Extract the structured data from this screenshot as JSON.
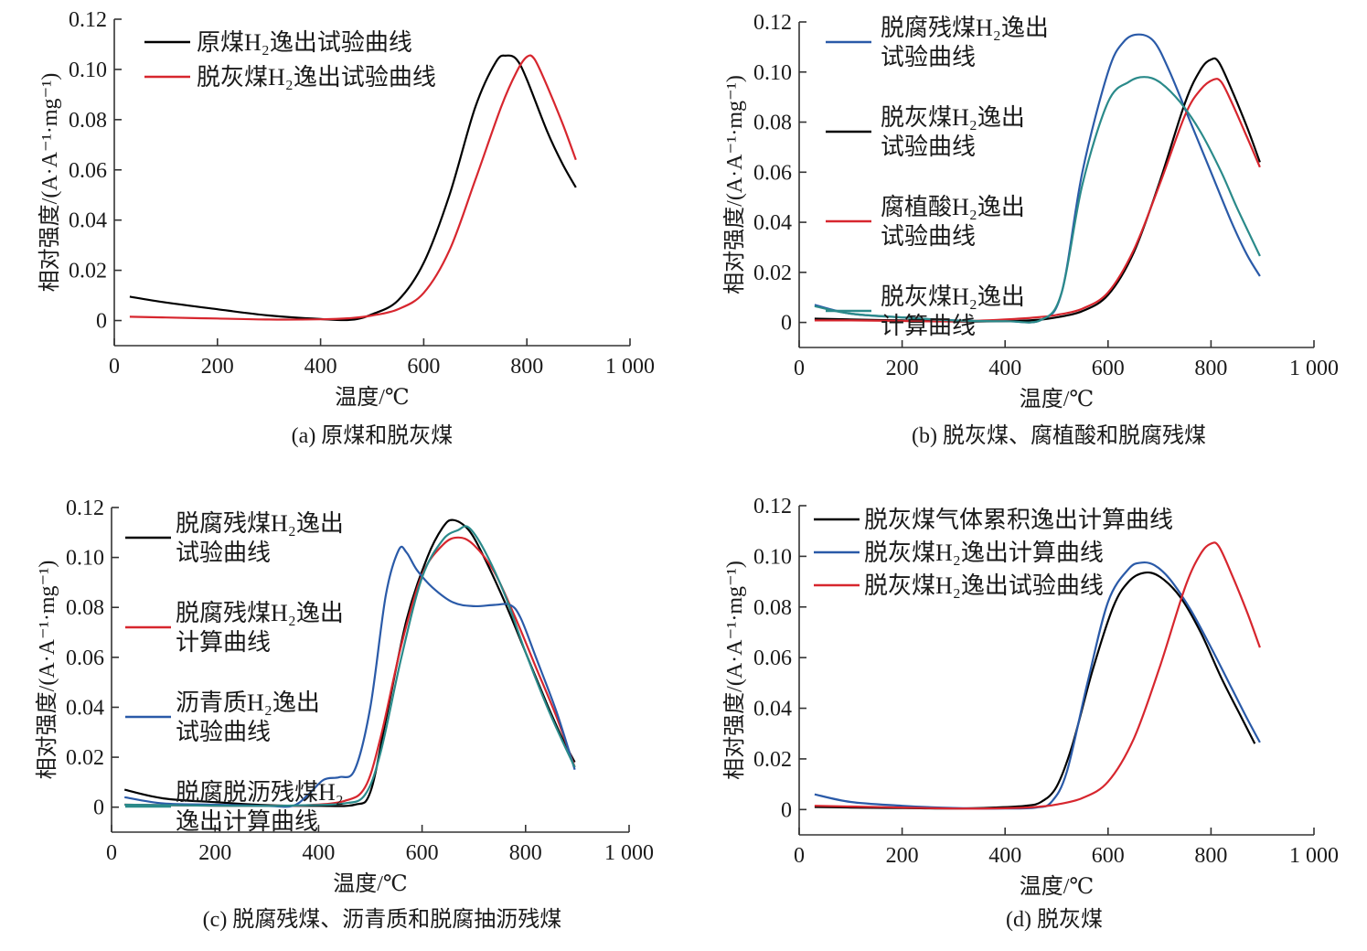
{
  "figure": {
    "panels_count": 4
  },
  "chart_data": [
    {
      "id": "a",
      "type": "line",
      "caption": "(a) 原煤和脱灰煤",
      "xlabel": "温度/℃",
      "ylabel": "相对强度/(A·A⁻¹·mg⁻¹)",
      "xlim": [
        0,
        1000
      ],
      "ylim": [
        -0.01,
        0.12
      ],
      "xticks": [
        0,
        200,
        400,
        600,
        800,
        1000
      ],
      "xtick_labels": [
        "0",
        "200",
        "400",
        "600",
        "800",
        "1 000"
      ],
      "yticks": [
        0,
        0.02,
        0.04,
        0.06,
        0.08,
        0.1,
        0.12
      ],
      "ytick_labels": [
        "0",
        "0.02",
        "0.04",
        "0.06",
        "0.08",
        "0.10",
        "0.12"
      ],
      "legend_position": "top-left",
      "series": [
        {
          "name": "原煤H₂逸出试验曲线",
          "legend_lines": [
            "原煤H₂逸出试验曲线"
          ],
          "color": "#000000",
          "x": [
            30,
            100,
            200,
            300,
            400,
            460,
            500,
            550,
            600,
            650,
            700,
            740,
            760,
            780,
            800,
            840,
            870,
            895
          ],
          "y": [
            0.0095,
            0.0072,
            0.0045,
            0.002,
            0.0006,
            0.0003,
            0.0025,
            0.008,
            0.023,
            0.05,
            0.085,
            0.103,
            0.1055,
            0.104,
            0.096,
            0.075,
            0.062,
            0.053
          ]
        },
        {
          "name": "脱灰煤H₂逸出试验曲线",
          "legend_lines": [
            "脱灰煤H₂逸出试验曲线"
          ],
          "color": "#d7262e",
          "x": [
            30,
            100,
            200,
            300,
            400,
            460,
            500,
            550,
            600,
            650,
            700,
            750,
            780,
            800,
            815,
            840,
            870,
            895
          ],
          "y": [
            0.0015,
            0.0012,
            0.0008,
            0.0004,
            0.0005,
            0.001,
            0.002,
            0.0045,
            0.011,
            0.028,
            0.056,
            0.085,
            0.099,
            0.105,
            0.104,
            0.093,
            0.078,
            0.064
          ]
        }
      ]
    },
    {
      "id": "b",
      "type": "line",
      "caption": "(b) 脱灰煤、腐植酸和脱腐残煤",
      "xlabel": "温度/℃",
      "ylabel": "相对强度/(A·A⁻¹·mg⁻¹)",
      "xlim": [
        0,
        1000
      ],
      "ylim": [
        -0.01,
        0.12
      ],
      "xticks": [
        0,
        200,
        400,
        600,
        800,
        1000
      ],
      "xtick_labels": [
        "0",
        "200",
        "400",
        "600",
        "800",
        "1 000"
      ],
      "yticks": [
        0,
        0.02,
        0.04,
        0.06,
        0.08,
        0.1,
        0.12
      ],
      "ytick_labels": [
        "0",
        "0.02",
        "0.04",
        "0.06",
        "0.08",
        "0.10",
        "0.12"
      ],
      "legend_position": "top-left",
      "series": [
        {
          "name": "脱腐残煤H₂逸出试验曲线",
          "legend_lines": [
            "脱腐残煤H₂逸出",
            "试验曲线"
          ],
          "color": "#2a5aa8",
          "x": [
            30,
            100,
            200,
            300,
            400,
            470,
            510,
            550,
            600,
            630,
            660,
            690,
            720,
            760,
            800,
            840,
            870,
            895
          ],
          "y": [
            0.007,
            0.0035,
            0.002,
            0.0008,
            0.0005,
            0.001,
            0.012,
            0.06,
            0.1,
            0.112,
            0.115,
            0.112,
            0.1,
            0.08,
            0.06,
            0.04,
            0.027,
            0.0185
          ]
        },
        {
          "name": "脱灰煤H₂逸出试验曲线",
          "legend_lines": [
            "脱灰煤H₂逸出",
            "试验曲线"
          ],
          "color": "#000000",
          "x": [
            30,
            100,
            200,
            300,
            400,
            460,
            500,
            550,
            600,
            650,
            700,
            750,
            780,
            800,
            815,
            840,
            870,
            895
          ],
          "y": [
            0.0015,
            0.0012,
            0.0008,
            0.0004,
            0.0005,
            0.001,
            0.002,
            0.0045,
            0.011,
            0.028,
            0.056,
            0.088,
            0.101,
            0.105,
            0.104,
            0.093,
            0.078,
            0.064
          ]
        },
        {
          "name": "腐植酸H₂逸出试验曲线",
          "legend_lines": [
            "腐植酸H₂逸出",
            "试验曲线"
          ],
          "color": "#d7262e",
          "x": [
            30,
            100,
            200,
            300,
            400,
            460,
            500,
            550,
            600,
            650,
            700,
            750,
            780,
            805,
            820,
            840,
            870,
            895
          ],
          "y": [
            0.0008,
            0.0008,
            0.0006,
            0.0004,
            0.0012,
            0.002,
            0.003,
            0.0055,
            0.012,
            0.029,
            0.055,
            0.083,
            0.093,
            0.097,
            0.096,
            0.088,
            0.074,
            0.062
          ]
        },
        {
          "name": "脱灰煤H₂逸出计算曲线",
          "legend_lines": [
            "脱灰煤H₂逸出",
            "计算曲线"
          ],
          "color": "#2a8a8a",
          "x": [
            30,
            100,
            200,
            300,
            400,
            470,
            510,
            550,
            600,
            640,
            670,
            700,
            740,
            780,
            820,
            850,
            880,
            895
          ],
          "y": [
            0.0065,
            0.0035,
            0.002,
            0.0008,
            0.0005,
            0.001,
            0.012,
            0.055,
            0.088,
            0.096,
            0.098,
            0.096,
            0.088,
            0.076,
            0.06,
            0.046,
            0.033,
            0.0265
          ]
        }
      ]
    },
    {
      "id": "c",
      "type": "line",
      "caption": "(c) 脱腐残煤、沥青质和脱腐抽沥残煤",
      "xlabel": "温度/℃",
      "ylabel": "相对强度/(A·A⁻¹·mg⁻¹)",
      "xlim": [
        0,
        1000
      ],
      "ylim": [
        -0.01,
        0.12
      ],
      "xticks": [
        0,
        200,
        400,
        600,
        800,
        1000
      ],
      "xtick_labels": [
        "0",
        "200",
        "400",
        "600",
        "800",
        "1 000"
      ],
      "yticks": [
        0,
        0.02,
        0.04,
        0.06,
        0.08,
        0.1,
        0.12
      ],
      "ytick_labels": [
        "0",
        "0.02",
        "0.04",
        "0.06",
        "0.08",
        "0.10",
        "0.12"
      ],
      "legend_position": "top-left",
      "series": [
        {
          "name": "脱腐残煤H₂逸出试验曲线",
          "legend_lines": [
            "脱腐残煤H₂逸出",
            "试验曲线"
          ],
          "color": "#000000",
          "x": [
            25,
            100,
            200,
            300,
            400,
            470,
            500,
            530,
            570,
            610,
            640,
            660,
            690,
            720,
            760,
            800,
            840,
            870,
            895
          ],
          "y": [
            0.007,
            0.0035,
            0.002,
            0.0008,
            0.0005,
            0.001,
            0.006,
            0.035,
            0.075,
            0.1,
            0.112,
            0.115,
            0.111,
            0.1,
            0.082,
            0.062,
            0.042,
            0.028,
            0.018
          ]
        },
        {
          "name": "脱腐残煤H₂逸出计算曲线",
          "legend_lines": [
            "脱腐残煤H₂逸出",
            "计算曲线"
          ],
          "color": "#d7262e",
          "x": [
            25,
            100,
            200,
            300,
            380,
            450,
            490,
            520,
            560,
            600,
            640,
            670,
            700,
            740,
            780,
            820,
            860,
            895
          ],
          "y": [
            0.001,
            0.0008,
            0.0006,
            0.0005,
            0.0008,
            0.0025,
            0.008,
            0.028,
            0.065,
            0.093,
            0.105,
            0.108,
            0.105,
            0.094,
            0.076,
            0.056,
            0.036,
            0.016
          ]
        },
        {
          "name": "沥青质H₂逸出试验曲线",
          "legend_lines": [
            "沥青质H₂逸出",
            "试验曲线"
          ],
          "color": "#2a5aa8",
          "x": [
            25,
            100,
            200,
            300,
            350,
            380,
            410,
            440,
            470,
            500,
            530,
            555,
            570,
            590,
            620,
            660,
            700,
            740,
            770,
            790,
            820,
            860,
            895
          ],
          "y": [
            0.004,
            0.0015,
            0.001,
            0.0005,
            0.0005,
            0.005,
            0.011,
            0.012,
            0.015,
            0.04,
            0.085,
            0.103,
            0.102,
            0.095,
            0.088,
            0.082,
            0.0805,
            0.081,
            0.081,
            0.076,
            0.06,
            0.038,
            0.015
          ]
        },
        {
          "name": "脱腐脱沥残煤H₂逸出计算曲线",
          "legend_lines": [
            "脱腐脱沥残煤H₂",
            "逸出计算曲线"
          ],
          "color": "#2a8a8a",
          "x": [
            25,
            100,
            200,
            300,
            380,
            450,
            490,
            520,
            560,
            600,
            640,
            670,
            690,
            720,
            760,
            800,
            840,
            870,
            895
          ],
          "y": [
            0.001,
            0.0008,
            0.0006,
            0.0005,
            0.0008,
            0.0015,
            0.005,
            0.022,
            0.06,
            0.092,
            0.107,
            0.111,
            0.112,
            0.103,
            0.085,
            0.062,
            0.041,
            0.027,
            0.016
          ]
        }
      ]
    },
    {
      "id": "d",
      "type": "line",
      "caption": "(d) 脱灰煤",
      "xlabel": "温度/℃",
      "ylabel": "相对强度/(A·A⁻¹·mg⁻¹)",
      "xlim": [
        0,
        1000
      ],
      "ylim": [
        -0.01,
        0.12
      ],
      "xticks": [
        0,
        200,
        400,
        600,
        800,
        1000
      ],
      "xtick_labels": [
        "0",
        "200",
        "400",
        "600",
        "800",
        "1 000"
      ],
      "yticks": [
        0,
        0.02,
        0.04,
        0.06,
        0.08,
        0.1,
        0.12
      ],
      "ytick_labels": [
        "0",
        "0.02",
        "0.04",
        "0.06",
        "0.08",
        "0.10",
        "0.12"
      ],
      "legend_position": "top-left",
      "series": [
        {
          "name": "脱灰煤气体累积逸出计算曲线",
          "legend_lines": [
            "脱灰煤气体累积逸出计算曲线"
          ],
          "color": "#000000",
          "x": [
            30,
            100,
            200,
            300,
            380,
            440,
            470,
            500,
            530,
            570,
            610,
            640,
            670,
            700,
            740,
            780,
            820,
            860,
            885
          ],
          "y": [
            0.001,
            0.0008,
            0.0006,
            0.0004,
            0.0008,
            0.0015,
            0.003,
            0.009,
            0.025,
            0.055,
            0.08,
            0.09,
            0.0935,
            0.092,
            0.084,
            0.07,
            0.052,
            0.036,
            0.026
          ]
        },
        {
          "name": "脱灰煤H₂逸出计算曲线",
          "legend_lines": [
            "脱灰煤H₂逸出计算曲线"
          ],
          "color": "#2a5aa8",
          "x": [
            30,
            100,
            200,
            300,
            400,
            460,
            490,
            520,
            560,
            600,
            640,
            665,
            690,
            720,
            760,
            800,
            840,
            870,
            895
          ],
          "y": [
            0.006,
            0.003,
            0.0015,
            0.0006,
            0.0004,
            0.0008,
            0.003,
            0.015,
            0.05,
            0.082,
            0.095,
            0.0975,
            0.0965,
            0.091,
            0.079,
            0.064,
            0.048,
            0.036,
            0.0265
          ]
        },
        {
          "name": "脱灰煤H₂逸出试验曲线",
          "legend_lines": [
            "脱灰煤H₂逸出试验曲线"
          ],
          "color": "#d7262e",
          "x": [
            30,
            100,
            200,
            300,
            400,
            460,
            500,
            550,
            600,
            650,
            700,
            750,
            780,
            800,
            815,
            840,
            870,
            895
          ],
          "y": [
            0.0015,
            0.0012,
            0.0008,
            0.0004,
            0.0005,
            0.001,
            0.002,
            0.0045,
            0.011,
            0.028,
            0.056,
            0.088,
            0.101,
            0.105,
            0.104,
            0.093,
            0.078,
            0.064
          ]
        }
      ]
    }
  ]
}
